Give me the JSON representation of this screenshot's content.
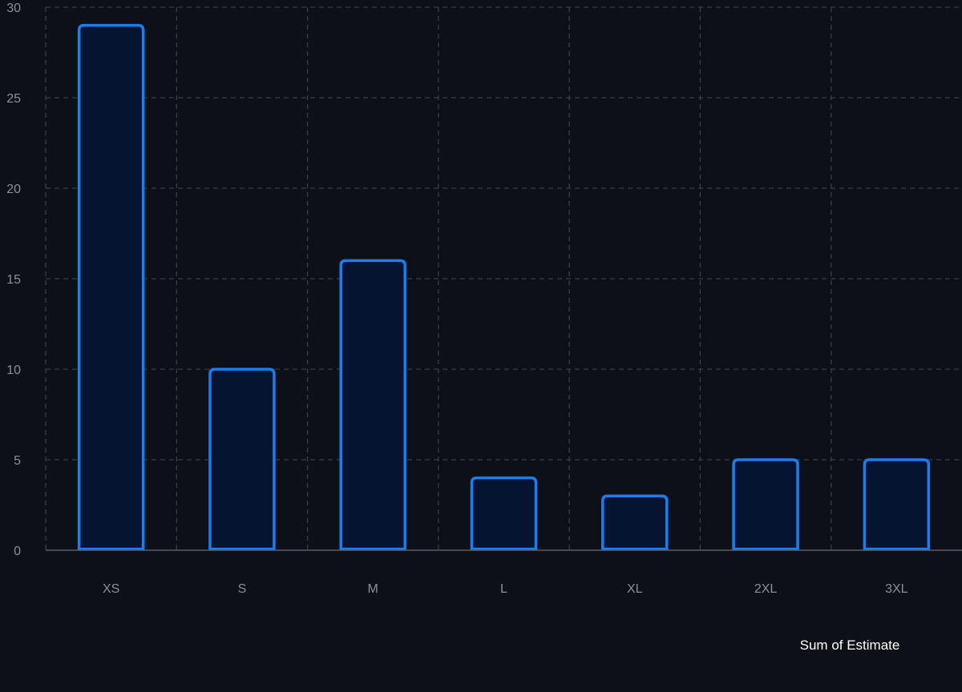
{
  "chart_data": {
    "type": "bar",
    "categories": [
      "XS",
      "S",
      "M",
      "L",
      "XL",
      "2XL",
      "3XL"
    ],
    "series": [
      {
        "name": "Sum of Estimate",
        "values": [
          29,
          10,
          16,
          4,
          3,
          5,
          5
        ]
      }
    ],
    "title": "",
    "xlabel": "",
    "ylabel": "",
    "ylim": [
      0,
      30
    ],
    "yticks": [
      0,
      5,
      10,
      15,
      20,
      25,
      30
    ],
    "grid": true,
    "legend_position": "bottom-right",
    "colors": {
      "background": "#0d1017",
      "bar_fill": "#041431",
      "bar_stroke": "#1a7ef0",
      "grid": "#3a3e47",
      "axis": "#5a5e66",
      "tick_text": "#8b8f99",
      "legend_text": "#ffffff"
    }
  }
}
